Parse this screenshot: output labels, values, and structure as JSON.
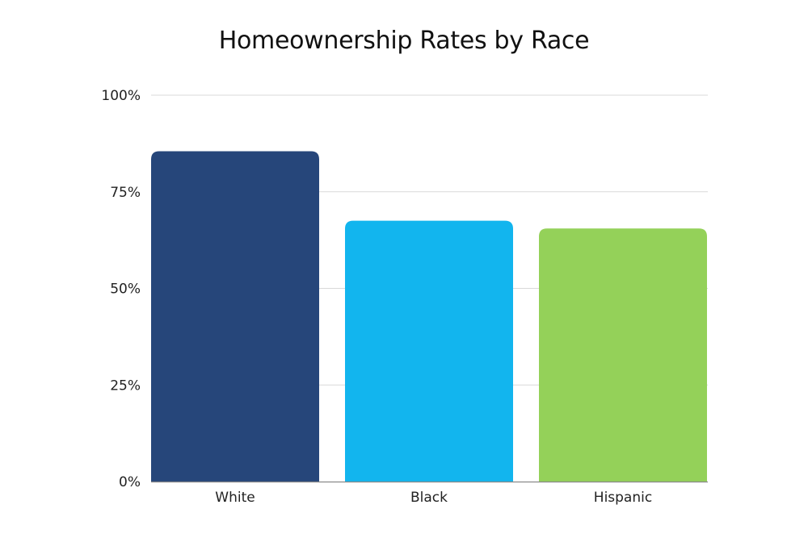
{
  "chart_data": {
    "type": "bar",
    "title": "Homeownership Rates by Race",
    "xlabel": "",
    "ylabel": "",
    "categories": [
      "White",
      "Black",
      "Hispanic"
    ],
    "values": [
      85.5,
      67.5,
      65.5
    ],
    "value_unit": "%",
    "ylim": [
      0,
      100
    ],
    "yticks": [
      0,
      25,
      50,
      75,
      100
    ],
    "ytick_labels": [
      "0%",
      "25%",
      "50%",
      "75%",
      "100%"
    ],
    "grid": true,
    "legend": "none",
    "colors": [
      "#26467a",
      "#12b5ee",
      "#94d159"
    ],
    "grid_color": "#d9d9d9",
    "axis_color": "#8a8a8a"
  }
}
